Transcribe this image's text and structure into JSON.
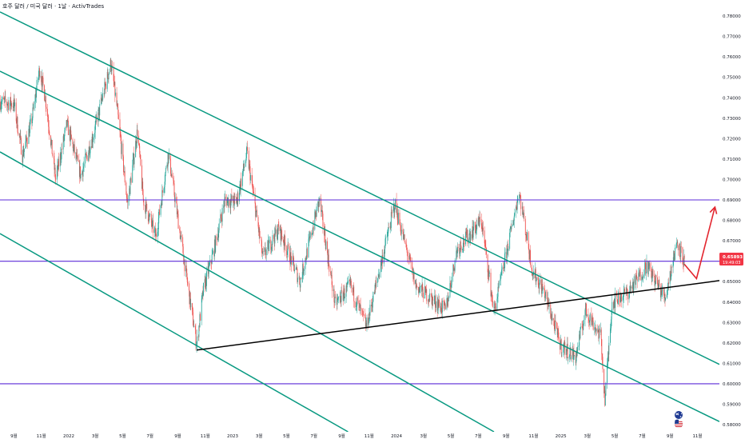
{
  "title": "호주 달러 / 미국 달러 · 1날 · ActivTrades",
  "price_tag": {
    "price": "0.65893",
    "countdown": "19:49:03",
    "color": "#f23645"
  },
  "colors": {
    "up": "#26a69a",
    "down": "#ef5350",
    "channel": "#089981",
    "horizontal": "#5b2bd8",
    "trendline": "#000000",
    "arrow": "#e3262f"
  },
  "icons": [
    "australia-flag-icon",
    "usa-flag-icon"
  ],
  "chart_data": {
    "type": "candlestick",
    "x_tick_labels": [
      "9월",
      "11월",
      "2022",
      "3월",
      "5월",
      "7월",
      "9월",
      "11월",
      "2023",
      "3월",
      "5월",
      "7월",
      "9월",
      "11월",
      "2024",
      "3월",
      "5월",
      "7월",
      "9월",
      "11월",
      "2025",
      "3월",
      "5월",
      "7월",
      "9월",
      "11월"
    ],
    "x_tick_dates": [
      "2021-09-01",
      "2021-11-01",
      "2022-01-01",
      "2022-03-01",
      "2022-05-01",
      "2022-07-01",
      "2022-09-01",
      "2022-11-01",
      "2023-01-01",
      "2023-03-01",
      "2023-05-01",
      "2023-07-01",
      "2023-09-01",
      "2023-11-01",
      "2024-01-01",
      "2024-03-01",
      "2024-05-01",
      "2024-07-01",
      "2024-09-01",
      "2024-11-01",
      "2025-01-01",
      "2025-03-01",
      "2025-05-01",
      "2025-07-01",
      "2025-09-01",
      "2025-11-01"
    ],
    "y_tick_labels": [
      "0.78000",
      "0.77000",
      "0.76000",
      "0.75000",
      "0.74000",
      "0.73000",
      "0.72000",
      "0.71000",
      "0.70000",
      "0.69000",
      "0.68000",
      "0.67000",
      "0.66000",
      "0.65000",
      "0.64000",
      "0.63000",
      "0.62000",
      "0.61000",
      "0.60000",
      "0.59000",
      "0.58000"
    ],
    "ylim": [
      0.5765,
      0.7855
    ],
    "xlim": [
      "2021-08-01",
      "2025-12-20"
    ],
    "price_anchors": [
      [
        "2021-08-01",
        0.738
      ],
      [
        "2021-09-01",
        0.737
      ],
      [
        "2021-09-20",
        0.712
      ],
      [
        "2021-10-10",
        0.728
      ],
      [
        "2021-10-28",
        0.754
      ],
      [
        "2021-11-10",
        0.74
      ],
      [
        "2021-12-03",
        0.7
      ],
      [
        "2021-12-28",
        0.727
      ],
      [
        "2022-01-28",
        0.702
      ],
      [
        "2022-02-25",
        0.722
      ],
      [
        "2022-04-05",
        0.757
      ],
      [
        "2022-04-18",
        0.736
      ],
      [
        "2022-05-12",
        0.688
      ],
      [
        "2022-06-03",
        0.724
      ],
      [
        "2022-06-16",
        0.69
      ],
      [
        "2022-07-14",
        0.672
      ],
      [
        "2022-08-11",
        0.713
      ],
      [
        "2022-09-05",
        0.675
      ],
      [
        "2022-10-13",
        0.619
      ],
      [
        "2022-10-28",
        0.646
      ],
      [
        "2022-11-20",
        0.665
      ],
      [
        "2022-12-15",
        0.69
      ],
      [
        "2023-01-10",
        0.689
      ],
      [
        "2023-02-02",
        0.713
      ],
      [
        "2023-03-09",
        0.662
      ],
      [
        "2023-04-14",
        0.676
      ],
      [
        "2023-05-31",
        0.65
      ],
      [
        "2023-07-13",
        0.69
      ],
      [
        "2023-08-17",
        0.639
      ],
      [
        "2023-09-20",
        0.648
      ],
      [
        "2023-10-26",
        0.628
      ],
      [
        "2023-12-28",
        0.688
      ],
      [
        "2024-02-13",
        0.648
      ],
      [
        "2024-04-19",
        0.636
      ],
      [
        "2024-05-15",
        0.666
      ],
      [
        "2024-07-08",
        0.68
      ],
      [
        "2024-08-05",
        0.635
      ],
      [
        "2024-09-30",
        0.694
      ],
      [
        "2024-10-30",
        0.655
      ],
      [
        "2024-11-25",
        0.645
      ],
      [
        "2024-12-31",
        0.619
      ],
      [
        "2025-02-03",
        0.613
      ],
      [
        "2025-02-25",
        0.636
      ],
      [
        "2025-03-31",
        0.623
      ],
      [
        "2025-04-09",
        0.592
      ],
      [
        "2025-04-25",
        0.64
      ],
      [
        "2025-05-31",
        0.645
      ],
      [
        "2025-07-11",
        0.658
      ],
      [
        "2025-08-21",
        0.642
      ],
      [
        "2025-09-17",
        0.67
      ],
      [
        "2025-10-03",
        0.659
      ]
    ],
    "channel_lines": [
      {
        "start": [
          "2021-08-01",
          0.782
        ],
        "end": [
          "2025-12-20",
          0.6095
        ]
      },
      {
        "start": [
          "2021-08-01",
          0.753
        ],
        "end": [
          "2025-12-20",
          0.5815
        ]
      },
      {
        "start": [
          "2021-08-01",
          0.7135
        ],
        "end": [
          "2024-08-05",
          0.5765
        ]
      },
      {
        "start": [
          "2021-08-01",
          0.6735
        ],
        "end": [
          "2023-09-15",
          0.5765
        ]
      }
    ],
    "horizontal_lines": [
      0.69,
      0.66,
      0.6
    ],
    "trendline": {
      "start": [
        "2022-10-13",
        0.6165
      ],
      "end": [
        "2025-12-20",
        0.6505
      ]
    },
    "projection": [
      [
        "2025-10-03",
        0.6585
      ],
      [
        "2025-10-30",
        0.6515
      ],
      [
        "2025-12-10",
        0.6865
      ]
    ]
  }
}
